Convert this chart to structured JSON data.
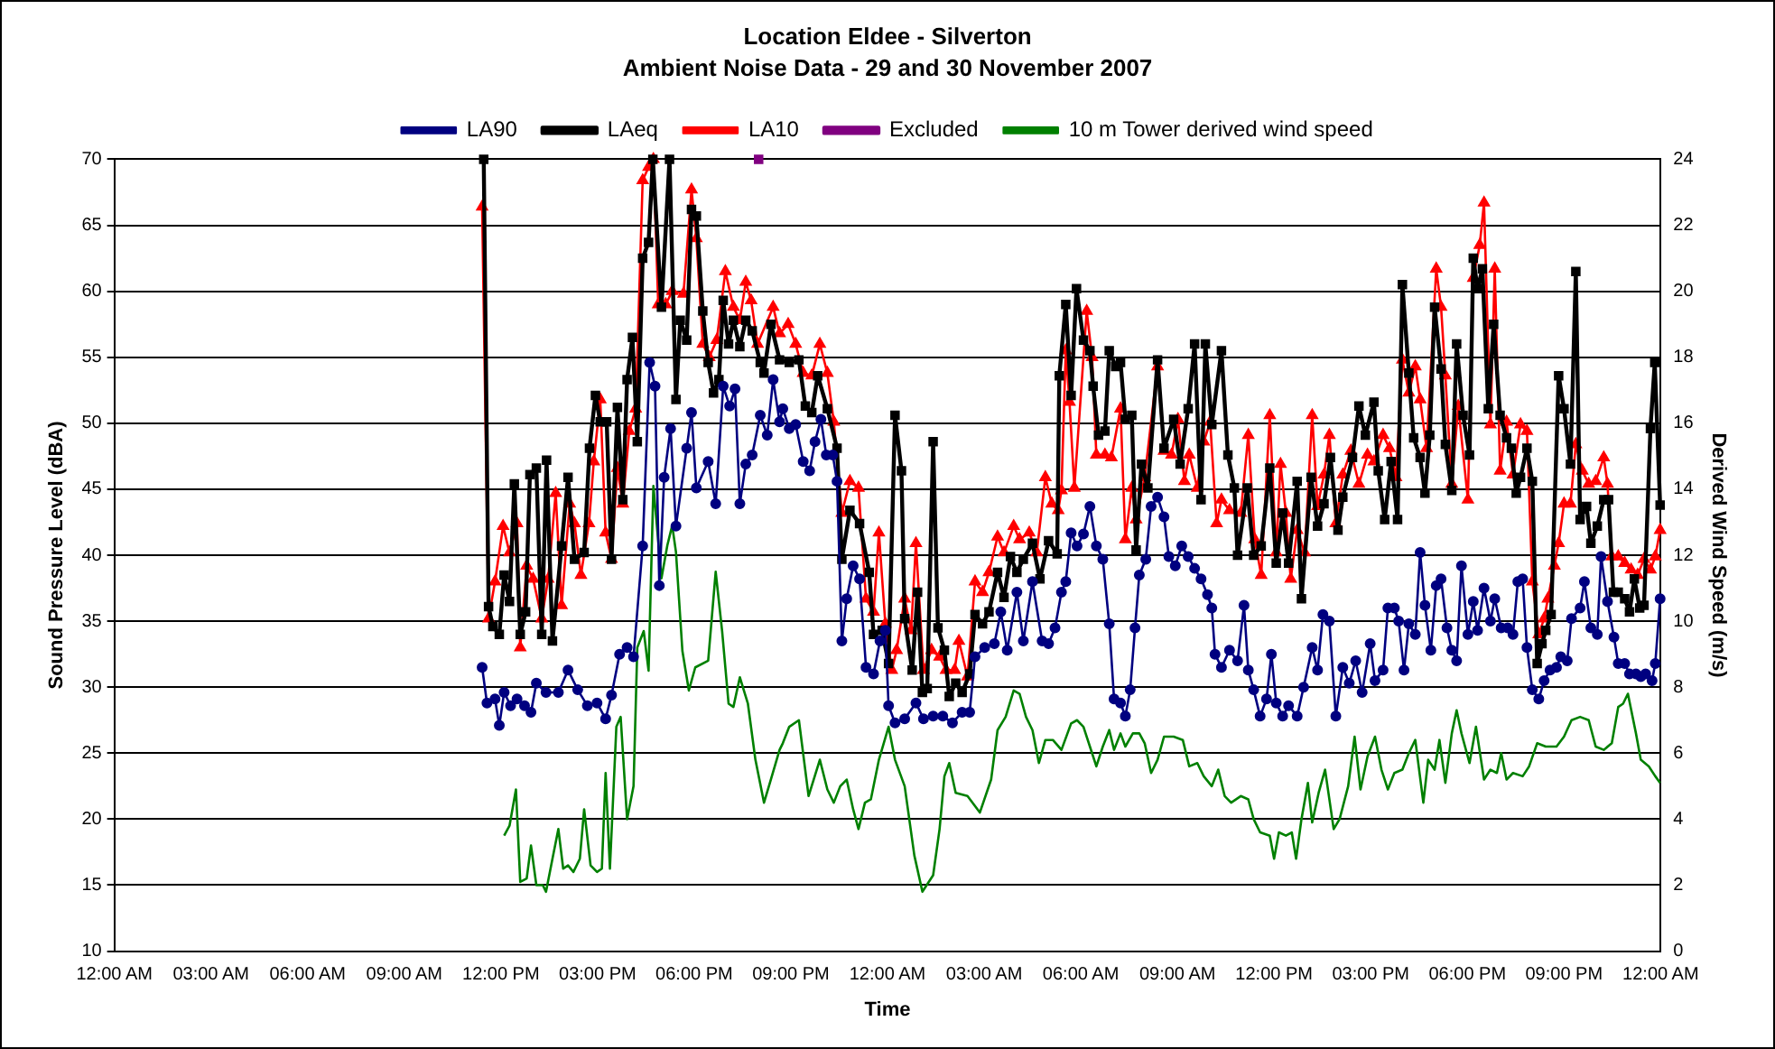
{
  "chart_data": {
    "type": "line",
    "title": "Location Eldee - Silverton",
    "subtitle": "Ambient Noise Data - 29 and 30 November 2007",
    "xlabel": "Time",
    "ylabel": "Sound Pressure Level (dBA)",
    "y2label": "Derived Wind Speed (m/s)",
    "xlim": [
      "2007-11-29T00:00",
      "2007-12-01T00:00"
    ],
    "xticks": [
      {
        "value": "2007-11-29T00:00",
        "label": "12:00 AM"
      },
      {
        "value": "2007-11-29T03:00",
        "label": "03:00 AM"
      },
      {
        "value": "2007-11-29T06:00",
        "label": "06:00 AM"
      },
      {
        "value": "2007-11-29T09:00",
        "label": "09:00 AM"
      },
      {
        "value": "2007-11-29T12:00",
        "label": "12:00 PM"
      },
      {
        "value": "2007-11-29T15:00",
        "label": "03:00 PM"
      },
      {
        "value": "2007-11-29T18:00",
        "label": "06:00 PM"
      },
      {
        "value": "2007-11-29T21:00",
        "label": "09:00 PM"
      },
      {
        "value": "2007-11-30T00:00",
        "label": "12:00 AM"
      },
      {
        "value": "2007-11-30T03:00",
        "label": "03:00 AM"
      },
      {
        "value": "2007-11-30T06:00",
        "label": "06:00 AM"
      },
      {
        "value": "2007-11-30T09:00",
        "label": "09:00 AM"
      },
      {
        "value": "2007-11-30T12:00",
        "label": "12:00 PM"
      },
      {
        "value": "2007-11-30T15:00",
        "label": "03:00 PM"
      },
      {
        "value": "2007-11-30T18:00",
        "label": "06:00 PM"
      },
      {
        "value": "2007-11-30T21:00",
        "label": "09:00 PM"
      },
      {
        "value": "2007-12-01T00:00",
        "label": "12:00 AM"
      }
    ],
    "ylim": [
      10,
      70
    ],
    "yticks": [
      10,
      15,
      20,
      25,
      30,
      35,
      40,
      45,
      50,
      55,
      60,
      65,
      70
    ],
    "y2lim": [
      0,
      24
    ],
    "y2ticks": [
      0,
      2,
      4,
      6,
      8,
      10,
      12,
      14,
      16,
      18,
      20,
      22,
      24
    ],
    "grid": "y",
    "legend": "top",
    "line_style": "solid",
    "series": [
      {
        "name": "LA90",
        "color": "#000080",
        "marker": "circle",
        "x": [
          "2007-11-29T11:25",
          "2007-11-29T11:34",
          "2007-11-29T11:49",
          "2007-11-29T11:57",
          "2007-11-29T12:06",
          "2007-11-29T12:18",
          "2007-11-29T12:30",
          "2007-11-29T12:44",
          "2007-11-29T12:56",
          "2007-11-29T13:06",
          "2007-11-29T13:24",
          "2007-11-29T13:47",
          "2007-11-29T14:05",
          "2007-11-29T14:23",
          "2007-11-29T14:41",
          "2007-11-29T14:59",
          "2007-11-29T15:15",
          "2007-11-29T15:26",
          "2007-11-29T15:41",
          "2007-11-29T15:55",
          "2007-11-29T16:07",
          "2007-11-29T16:24",
          "2007-11-29T16:37",
          "2007-11-29T16:47",
          "2007-11-29T16:55",
          "2007-11-29T17:04",
          "2007-11-29T17:16",
          "2007-11-29T17:26",
          "2007-11-29T17:46",
          "2007-11-29T17:55",
          "2007-11-29T18:04",
          "2007-11-29T18:26",
          "2007-11-29T18:40",
          "2007-11-29T18:54",
          "2007-11-29T19:06",
          "2007-11-29T19:16",
          "2007-11-29T19:25",
          "2007-11-29T19:36",
          "2007-11-29T19:48",
          "2007-11-29T20:03",
          "2007-11-29T20:16",
          "2007-11-29T20:27",
          "2007-11-29T20:39",
          "2007-11-29T20:45",
          "2007-11-29T20:57",
          "2007-11-29T21:09",
          "2007-11-29T21:23",
          "2007-11-29T21:35",
          "2007-11-29T21:45",
          "2007-11-29T21:56",
          "2007-11-29T22:06",
          "2007-11-29T22:18",
          "2007-11-29T22:26",
          "2007-11-29T22:35",
          "2007-11-29T22:44",
          "2007-11-29T22:56",
          "2007-11-29T23:08",
          "2007-11-29T23:20",
          "2007-11-29T23:34",
          "2007-11-29T23:46",
          "2007-11-29T23:56",
          "2007-11-30T00:02",
          "2007-11-30T00:14",
          "2007-11-30T00:32",
          "2007-11-30T00:53",
          "2007-11-30T01:07",
          "2007-11-30T01:25",
          "2007-11-30T01:43",
          "2007-11-30T02:01",
          "2007-11-30T02:19",
          "2007-11-30T02:33",
          "2007-11-30T02:43",
          "2007-11-30T03:01",
          "2007-11-30T03:19",
          "2007-11-30T03:31",
          "2007-11-30T03:43",
          "2007-11-30T04:01",
          "2007-11-30T04:13",
          "2007-11-30T04:30",
          "2007-11-30T04:48",
          "2007-11-30T05:00",
          "2007-11-30T05:12",
          "2007-11-30T05:24",
          "2007-11-30T05:32",
          "2007-11-30T05:42",
          "2007-11-30T05:53",
          "2007-11-30T06:05",
          "2007-11-30T06:17",
          "2007-11-30T06:29",
          "2007-11-30T06:41",
          "2007-11-30T06:53",
          "2007-11-30T07:02",
          "2007-11-30T07:14",
          "2007-11-30T07:23",
          "2007-11-30T07:32",
          "2007-11-30T07:41",
          "2007-11-30T07:49",
          "2007-11-30T08:01",
          "2007-11-30T08:11",
          "2007-11-30T08:23",
          "2007-11-30T08:35",
          "2007-11-30T08:44",
          "2007-11-30T08:56",
          "2007-11-30T09:08",
          "2007-11-30T09:20",
          "2007-11-30T09:32",
          "2007-11-30T09:44",
          "2007-11-30T09:56",
          "2007-11-30T10:04",
          "2007-11-30T10:10",
          "2007-11-30T10:22",
          "2007-11-30T10:37",
          "2007-11-30T10:52",
          "2007-11-30T11:04",
          "2007-11-30T11:12",
          "2007-11-30T11:22",
          "2007-11-30T11:34",
          "2007-11-30T11:46",
          "2007-11-30T11:55",
          "2007-11-30T12:04",
          "2007-11-30T12:16",
          "2007-11-30T12:27",
          "2007-11-30T12:43",
          "2007-11-30T12:55",
          "2007-11-30T13:11",
          "2007-11-30T13:21",
          "2007-11-30T13:31",
          "2007-11-30T13:43",
          "2007-11-30T13:55",
          "2007-11-30T14:08",
          "2007-11-30T14:20",
          "2007-11-30T14:32",
          "2007-11-30T14:44",
          "2007-11-30T14:59",
          "2007-11-30T15:08",
          "2007-11-30T15:23",
          "2007-11-30T15:32",
          "2007-11-30T15:44",
          "2007-11-30T15:52",
          "2007-11-30T16:02",
          "2007-11-30T16:11",
          "2007-11-30T16:23",
          "2007-11-30T16:32",
          "2007-11-30T16:41",
          "2007-11-30T16:52",
          "2007-11-30T17:02",
          "2007-11-30T17:11",
          "2007-11-30T17:22",
          "2007-11-30T17:31",
          "2007-11-30T17:40",
          "2007-11-30T17:49",
          "2007-11-30T18:01",
          "2007-11-30T18:11",
          "2007-11-30T18:19",
          "2007-11-30T18:31",
          "2007-11-30T18:43",
          "2007-11-30T18:51",
          "2007-11-30T19:03",
          "2007-11-30T19:15",
          "2007-11-30T19:25",
          "2007-11-30T19:34",
          "2007-11-30T19:43",
          "2007-11-30T19:51",
          "2007-11-30T20:01",
          "2007-11-30T20:13",
          "2007-11-30T20:23",
          "2007-11-30T20:34",
          "2007-11-30T20:46",
          "2007-11-30T20:54",
          "2007-11-30T21:06",
          "2007-11-30T21:14",
          "2007-11-30T21:30",
          "2007-11-30T21:38",
          "2007-11-30T21:50",
          "2007-11-30T22:02",
          "2007-11-30T22:09",
          "2007-11-30T22:21",
          "2007-11-30T22:33",
          "2007-11-30T22:41",
          "2007-11-30T22:53",
          "2007-11-30T23:02",
          "2007-11-30T23:14",
          "2007-11-30T23:23",
          "2007-11-30T23:32",
          "2007-11-30T23:44",
          "2007-11-30T23:50",
          "2007-11-30T23:59"
        ],
        "values": [
          31.5,
          28.8,
          29.1,
          27.1,
          29.6,
          28.6,
          29.1,
          28.6,
          28.1,
          30.3,
          29.6,
          29.6,
          31.3,
          29.8,
          28.6,
          28.8,
          27.6,
          29.4,
          32.5,
          33.0,
          32.3,
          40.7,
          54.6,
          52.8,
          37.7,
          45.9,
          49.6,
          42.2,
          48.1,
          50.8,
          45.1,
          47.1,
          43.9,
          52.8,
          51.3,
          52.6,
          43.9,
          46.9,
          47.6,
          50.6,
          49.1,
          53.3,
          50.1,
          51.1,
          49.6,
          49.9,
          47.1,
          46.4,
          48.6,
          50.3,
          47.6,
          47.6,
          45.6,
          33.5,
          36.7,
          39.2,
          38.2,
          31.5,
          31.0,
          33.5,
          34.3,
          28.6,
          27.3,
          27.6,
          28.8,
          27.6,
          27.8,
          27.8,
          27.3,
          28.1,
          28.1,
          32.3,
          33.0,
          33.3,
          35.7,
          32.8,
          37.2,
          33.5,
          38.0,
          33.5,
          33.3,
          34.5,
          37.2,
          38.0,
          41.7,
          40.7,
          41.6,
          43.7,
          40.7,
          39.7,
          34.8,
          29.1,
          28.8,
          27.8,
          29.8,
          34.5,
          38.5,
          39.7,
          43.7,
          44.4,
          42.9,
          39.9,
          39.2,
          40.7,
          39.9,
          39.0,
          38.2,
          37.0,
          36.0,
          32.5,
          31.5,
          32.8,
          32.0,
          36.2,
          31.3,
          29.8,
          27.8,
          29.1,
          32.5,
          28.8,
          27.8,
          28.6,
          27.8,
          30.0,
          33.0,
          31.3,
          35.5,
          35.0,
          27.8,
          31.5,
          30.3,
          32.0,
          29.6,
          33.3,
          30.5,
          31.3,
          36.0,
          36.0,
          35.0,
          31.3,
          34.8,
          34.0,
          40.2,
          36.2,
          32.8,
          37.7,
          38.2,
          34.5,
          32.8,
          32.0,
          39.2,
          34.0,
          36.5,
          34.3,
          37.5,
          35.0,
          36.7,
          34.5,
          34.5,
          34.0,
          38.0,
          38.2,
          33.0,
          29.8,
          29.1,
          30.5,
          31.3,
          31.5,
          32.3,
          32.0,
          35.2,
          36.0,
          38.0,
          34.5,
          34.0,
          39.9,
          36.5,
          33.8,
          31.8,
          31.8,
          31.0,
          31.0,
          30.8,
          31.0,
          30.5,
          31.8,
          36.7
        ]
      },
      {
        "name": "LAeq",
        "color": "#000000",
        "marker": "square",
        "x": [
          "2007-11-29T11:28",
          "2007-11-29T11:37",
          "2007-11-29T11:45",
          "2007-11-29T11:57",
          "2007-11-29T12:06",
          "2007-11-29T12:16",
          "2007-11-29T12:25",
          "2007-11-29T12:36",
          "2007-11-29T12:46",
          "2007-11-29T12:54",
          "2007-11-29T13:06",
          "2007-11-29T13:16",
          "2007-11-29T13:25",
          "2007-11-29T13:36",
          "2007-11-29T13:53",
          "2007-11-29T14:05",
          "2007-11-29T14:17",
          "2007-11-29T14:35",
          "2007-11-29T14:45",
          "2007-11-29T14:56",
          "2007-11-29T15:05",
          "2007-11-29T15:17",
          "2007-11-29T15:26",
          "2007-11-29T15:37",
          "2007-11-29T15:47",
          "2007-11-29T15:55",
          "2007-11-29T16:05",
          "2007-11-29T16:14",
          "2007-11-29T16:24",
          "2007-11-29T16:35",
          "2007-11-29T16:43",
          "2007-11-29T16:59",
          "2007-11-29T17:14",
          "2007-11-29T17:26",
          "2007-11-29T17:34",
          "2007-11-29T17:46",
          "2007-11-29T17:55",
          "2007-11-29T18:04",
          "2007-11-29T18:16",
          "2007-11-29T18:26",
          "2007-11-29T18:36",
          "2007-11-29T18:46",
          "2007-11-29T18:54",
          "2007-11-29T19:04",
          "2007-11-29T19:13",
          "2007-11-29T19:25",
          "2007-11-29T19:36",
          "2007-11-29T19:48",
          "2007-11-29T20:03",
          "2007-11-29T20:10",
          "2007-11-29T20:23",
          "2007-11-29T20:39",
          "2007-11-29T20:57",
          "2007-11-29T21:15",
          "2007-11-29T21:27",
          "2007-11-29T21:39",
          "2007-11-29T21:50",
          "2007-11-29T22:08",
          "2007-11-29T22:26",
          "2007-11-29T22:35",
          "2007-11-29T22:50",
          "2007-11-29T23:08",
          "2007-11-29T23:26",
          "2007-11-29T23:34",
          "2007-11-29T23:50",
          "2007-11-30T00:02",
          "2007-11-30T00:14",
          "2007-11-30T00:26",
          "2007-11-30T00:32",
          "2007-11-30T00:46",
          "2007-11-30T00:56",
          "2007-11-30T01:05",
          "2007-11-30T01:14",
          "2007-11-30T01:25",
          "2007-11-30T01:34",
          "2007-11-30T01:46",
          "2007-11-30T01:55",
          "2007-11-30T02:07",
          "2007-11-30T02:19",
          "2007-11-30T02:33",
          "2007-11-30T02:43",
          "2007-11-30T02:57",
          "2007-11-30T03:09",
          "2007-11-30T03:25",
          "2007-11-30T03:37",
          "2007-11-30T03:49",
          "2007-11-30T04:01",
          "2007-11-30T04:13",
          "2007-11-30T04:30",
          "2007-11-30T04:44",
          "2007-11-30T05:00",
          "2007-11-30T05:16",
          "2007-11-30T05:20",
          "2007-11-30T05:32",
          "2007-11-30T05:42",
          "2007-11-30T05:52",
          "2007-11-30T06:05",
          "2007-11-30T06:17",
          "2007-11-30T06:23",
          "2007-11-30T06:33",
          "2007-11-30T06:45",
          "2007-11-30T06:53",
          "2007-11-30T07:05",
          "2007-11-30T07:14",
          "2007-11-30T07:23",
          "2007-11-30T07:35",
          "2007-11-30T07:43",
          "2007-11-30T07:53",
          "2007-11-30T08:05",
          "2007-11-30T08:23",
          "2007-11-30T08:35",
          "2007-11-30T08:53",
          "2007-11-30T09:05",
          "2007-11-30T09:20",
          "2007-11-30T09:32",
          "2007-11-30T09:44",
          "2007-11-30T09:52",
          "2007-11-30T10:04",
          "2007-11-30T10:22",
          "2007-11-30T10:34",
          "2007-11-30T10:46",
          "2007-11-30T10:52",
          "2007-11-30T11:10",
          "2007-11-30T11:22",
          "2007-11-30T11:36",
          "2007-11-30T11:52",
          "2007-11-30T12:04",
          "2007-11-30T12:16",
          "2007-11-30T12:27",
          "2007-11-30T12:43",
          "2007-11-30T12:51",
          "2007-11-30T13:09",
          "2007-11-30T13:21",
          "2007-11-30T13:33",
          "2007-11-30T13:45",
          "2007-11-30T13:59",
          "2007-11-30T14:08",
          "2007-11-30T14:26",
          "2007-11-30T14:38",
          "2007-11-30T14:50",
          "2007-11-30T15:06",
          "2007-11-30T15:14",
          "2007-11-30T15:26",
          "2007-11-30T15:38",
          "2007-11-30T15:50",
          "2007-11-30T15:59",
          "2007-11-30T16:11",
          "2007-11-30T16:20",
          "2007-11-30T16:32",
          "2007-11-30T16:41",
          "2007-11-30T16:50",
          "2007-11-30T16:59",
          "2007-11-30T17:11",
          "2007-11-30T17:19",
          "2007-11-30T17:31",
          "2007-11-30T17:40",
          "2007-11-30T17:52",
          "2007-11-30T18:04",
          "2007-11-30T18:11",
          "2007-11-30T18:19",
          "2007-11-30T18:28",
          "2007-11-30T18:39",
          "2007-11-30T18:49",
          "2007-11-30T19:01",
          "2007-11-30T19:13",
          "2007-11-30T19:22",
          "2007-11-30T19:31",
          "2007-11-30T19:39",
          "2007-11-30T19:51",
          "2007-11-30T20:01",
          "2007-11-30T20:10",
          "2007-11-30T20:19",
          "2007-11-30T20:26",
          "2007-11-30T20:36",
          "2007-11-30T20:50",
          "2007-11-30T21:00",
          "2007-11-30T21:12",
          "2007-11-30T21:22",
          "2007-11-30T21:30",
          "2007-11-30T21:42",
          "2007-11-30T21:50",
          "2007-11-30T22:02",
          "2007-11-30T22:14",
          "2007-11-30T22:23",
          "2007-11-30T22:32",
          "2007-11-30T22:41",
          "2007-11-30T22:53",
          "2007-11-30T23:02",
          "2007-11-30T23:11",
          "2007-11-30T23:21",
          "2007-11-30T23:29",
          "2007-11-30T23:41",
          "2007-11-30T23:49",
          "2007-11-30T23:59"
        ],
        "values": [
          70,
          36.1,
          34.6,
          34.0,
          38.5,
          36.5,
          45.4,
          34.0,
          35.7,
          46.1,
          46.6,
          34.0,
          47.2,
          33.5,
          40.7,
          45.9,
          39.7,
          40.2,
          48.1,
          52.1,
          50.1,
          50.1,
          39.7,
          51.2,
          44.2,
          53.3,
          56.5,
          48.6,
          62.5,
          63.7,
          70,
          58.8,
          70,
          51.8,
          57.8,
          56.3,
          66.2,
          65.7,
          58.5,
          54.6,
          52.3,
          53.3,
          59.3,
          56.0,
          57.8,
          55.8,
          57.8,
          57.0,
          54.6,
          53.8,
          57.5,
          54.8,
          54.6,
          54.8,
          51.3,
          50.8,
          53.6,
          51.1,
          48.1,
          39.7,
          43.4,
          42.4,
          38.7,
          34.0,
          34.3,
          31.8,
          50.6,
          46.4,
          35.2,
          31.3,
          37.2,
          29.6,
          29.9,
          48.6,
          34.5,
          32.8,
          29.3,
          30.3,
          29.6,
          31.0,
          35.5,
          34.8,
          35.7,
          38.7,
          36.8,
          39.9,
          38.7,
          39.7,
          40.9,
          38.2,
          41.1,
          40.1,
          53.6,
          59.0,
          52.1,
          60.2,
          56.3,
          55.5,
          52.8,
          49.1,
          49.4,
          55.5,
          54.3,
          54.6,
          50.3,
          50.6,
          40.4,
          46.9,
          45.1,
          54.8,
          48.1,
          50.3,
          46.9,
          51.1,
          56.0,
          44.2,
          56.0,
          49.9,
          55.5,
          47.6,
          45.1,
          40.0,
          45.1,
          40.0,
          40.7,
          46.6,
          39.4,
          43.2,
          39.4,
          45.6,
          36.7,
          45.9,
          42.2,
          43.9,
          47.4,
          41.9,
          44.4,
          47.4,
          51.3,
          49.1,
          51.6,
          46.4,
          42.7,
          47.1,
          42.7,
          60.5,
          53.8,
          48.9,
          47.4,
          44.7,
          49.1,
          58.8,
          54.1,
          48.4,
          44.9,
          56.0,
          50.6,
          47.6,
          62.5,
          60.2,
          61.7,
          51.1,
          57.5,
          50.6,
          48.9,
          48.1,
          44.7,
          45.9,
          48.1,
          45.6,
          31.8,
          33.3,
          34.3,
          35.5,
          53.6,
          51.1,
          46.9,
          61.5,
          42.7,
          43.7,
          40.9,
          42.2,
          44.2,
          44.2,
          37.2,
          37.2,
          36.7,
          35.7,
          38.2,
          36.0,
          36.2,
          49.6,
          54.6,
          43.8
        ]
      },
      {
        "name": "LA10",
        "color": "#ff0000",
        "marker": "triangle",
        "x": [
          "2007-11-29T11:25",
          "2007-11-29T11:37",
          "2007-11-29T11:49",
          "2007-11-29T12:04",
          "2007-11-29T12:16",
          "2007-11-29T12:30",
          "2007-11-29T12:36",
          "2007-11-29T12:48",
          "2007-11-29T13:00",
          "2007-11-29T13:16",
          "2007-11-29T13:28",
          "2007-11-29T13:42",
          "2007-11-29T13:53",
          "2007-11-29T14:08",
          "2007-11-29T14:17",
          "2007-11-29T14:29",
          "2007-11-29T14:44",
          "2007-11-29T14:53",
          "2007-11-29T15:05",
          "2007-11-29T15:15",
          "2007-11-29T15:26",
          "2007-11-29T15:37",
          "2007-11-29T15:47",
          "2007-11-29T15:59",
          "2007-11-29T16:11",
          "2007-11-29T16:24",
          "2007-11-29T16:35",
          "2007-11-29T16:44",
          "2007-11-29T16:53",
          "2007-11-29T17:07",
          "2007-11-29T17:19",
          "2007-11-29T17:40",
          "2007-11-29T17:55",
          "2007-11-29T18:04",
          "2007-11-29T18:16",
          "2007-11-29T18:28",
          "2007-11-29T18:42",
          "2007-11-29T18:58",
          "2007-11-29T19:13",
          "2007-11-29T19:25",
          "2007-11-29T19:36",
          "2007-11-29T19:46",
          "2007-11-29T19:58",
          "2007-11-29T20:27",
          "2007-11-29T20:39",
          "2007-11-29T20:55",
          "2007-11-29T21:09",
          "2007-11-29T21:23",
          "2007-11-29T21:39",
          "2007-11-29T21:54",
          "2007-11-29T22:08",
          "2007-11-29T22:20",
          "2007-11-29T22:35",
          "2007-11-29T22:50",
          "2007-11-29T23:06",
          "2007-11-29T23:20",
          "2007-11-29T23:34",
          "2007-11-29T23:44",
          "2007-11-29T23:56",
          "2007-11-30T00:08",
          "2007-11-30T00:17",
          "2007-11-30T00:32",
          "2007-11-30T00:44",
          "2007-11-30T00:53",
          "2007-11-30T01:07",
          "2007-11-30T01:22",
          "2007-11-30T01:37",
          "2007-11-30T01:49",
          "2007-11-30T02:05",
          "2007-11-30T02:13",
          "2007-11-30T02:29",
          "2007-11-30T02:43",
          "2007-11-30T02:57",
          "2007-11-30T03:09",
          "2007-11-30T03:25",
          "2007-11-30T03:37",
          "2007-11-30T03:55",
          "2007-11-30T04:06",
          "2007-11-30T04:24",
          "2007-11-30T04:38",
          "2007-11-30T04:54",
          "2007-11-30T05:06",
          "2007-11-30T05:18",
          "2007-11-30T05:24",
          "2007-11-30T05:32",
          "2007-11-30T05:39",
          "2007-11-30T05:48",
          "2007-11-30T06:11",
          "2007-11-30T06:21",
          "2007-11-30T06:29",
          "2007-11-30T06:45",
          "2007-11-30T06:57",
          "2007-11-30T07:14",
          "2007-11-30T07:23",
          "2007-11-30T07:35",
          "2007-11-30T07:43",
          "2007-11-30T07:59",
          "2007-11-30T08:23",
          "2007-11-30T08:35",
          "2007-11-30T08:49",
          "2007-11-30T09:01",
          "2007-11-30T09:13",
          "2007-11-30T09:22",
          "2007-11-30T09:37",
          "2007-11-30T09:49",
          "2007-11-30T10:01",
          "2007-11-30T10:13",
          "2007-11-30T10:22",
          "2007-11-30T10:37",
          "2007-11-30T10:58",
          "2007-11-30T11:12",
          "2007-11-30T11:24",
          "2007-11-30T11:36",
          "2007-11-30T11:52",
          "2007-11-30T12:04",
          "2007-11-30T12:12",
          "2007-11-30T12:22",
          "2007-11-30T12:31",
          "2007-11-30T12:43",
          "2007-11-30T12:57",
          "2007-11-30T13:11",
          "2007-11-30T13:21",
          "2007-11-30T13:33",
          "2007-11-30T13:43",
          "2007-11-30T13:55",
          "2007-11-30T14:08",
          "2007-11-30T14:23",
          "2007-11-30T14:38",
          "2007-11-30T14:54",
          "2007-11-30T15:06",
          "2007-11-30T15:23",
          "2007-11-30T15:35",
          "2007-11-30T15:47",
          "2007-11-30T15:59",
          "2007-11-30T16:11",
          "2007-11-30T16:23",
          "2007-11-30T16:32",
          "2007-11-30T16:44",
          "2007-11-30T17:02",
          "2007-11-30T17:11",
          "2007-11-30T17:19",
          "2007-11-30T17:31",
          "2007-11-30T17:43",
          "2007-11-30T18:01",
          "2007-11-30T18:11",
          "2007-11-30T18:23",
          "2007-11-30T18:31",
          "2007-11-30T18:43",
          "2007-11-30T18:51",
          "2007-11-30T19:01",
          "2007-11-30T19:13",
          "2007-11-30T19:25",
          "2007-11-30T19:39",
          "2007-11-30T19:51",
          "2007-11-30T20:01",
          "2007-11-30T20:13",
          "2007-11-30T20:23",
          "2007-11-30T20:30",
          "2007-11-30T20:42",
          "2007-11-30T20:50",
          "2007-11-30T21:00",
          "2007-11-30T21:12",
          "2007-11-30T21:22",
          "2007-11-30T21:34",
          "2007-11-30T21:46",
          "2007-11-30T21:59",
          "2007-11-30T22:14",
          "2007-11-30T22:21",
          "2007-11-30T22:29",
          "2007-11-30T22:41",
          "2007-11-30T22:53",
          "2007-11-30T23:05",
          "2007-11-30T23:17",
          "2007-11-30T23:29",
          "2007-11-30T23:41",
          "2007-11-30T23:50",
          "2007-11-30T23:59"
        ],
        "values": [
          66.4,
          35.2,
          38.0,
          42.2,
          40.2,
          42.4,
          33.0,
          39.2,
          38.2,
          35.2,
          38.2,
          44.7,
          36.2,
          43.9,
          42.4,
          38.5,
          42.4,
          47.1,
          51.8,
          41.7,
          39.7,
          46.6,
          43.9,
          49.4,
          51.1,
          68.4,
          69.4,
          70,
          59.0,
          59.0,
          60.0,
          59.8,
          67.7,
          64.0,
          56.0,
          55.0,
          56.3,
          61.5,
          58.8,
          57.8,
          60.7,
          59.3,
          56.0,
          58.8,
          56.8,
          57.5,
          56.0,
          53.8,
          53.6,
          56.0,
          53.8,
          50.1,
          43.2,
          45.6,
          45.1,
          36.7,
          35.7,
          41.7,
          34.8,
          31.3,
          32.8,
          36.7,
          34.3,
          40.9,
          31.3,
          32.8,
          32.3,
          31.3,
          31.3,
          33.5,
          30.8,
          38.0,
          37.2,
          38.7,
          41.4,
          40.2,
          42.2,
          41.2,
          41.7,
          40.2,
          45.9,
          43.9,
          43.4,
          44.9,
          55.5,
          51.6,
          45.1,
          58.5,
          55.0,
          47.6,
          47.6,
          47.4,
          51.1,
          41.2,
          45.1,
          42.7,
          45.9,
          54.3,
          47.9,
          47.6,
          50.3,
          45.6,
          47.6,
          45.1,
          48.6,
          50.1,
          42.4,
          44.2,
          43.4,
          43.2,
          49.1,
          41.2,
          38.5,
          50.6,
          40.2,
          46.9,
          43.2,
          38.2,
          41.9,
          40.2,
          50.6,
          43.7,
          46.1,
          49.1,
          42.4,
          46.1,
          47.9,
          45.4,
          47.6,
          47.1,
          49.1,
          48.1,
          45.9,
          54.8,
          52.3,
          54.3,
          51.8,
          48.1,
          61.7,
          58.8,
          53.6,
          45.4,
          51.3,
          44.2,
          61.0,
          63.5,
          66.7,
          49.9,
          61.7,
          46.4,
          50.1,
          46.1,
          49.9,
          49.4,
          38.0,
          34.0,
          35.2,
          36.7,
          39.2,
          40.9,
          43.9,
          43.9,
          48.4,
          46.4,
          45.4,
          45.6,
          47.4,
          45.4,
          39.9,
          39.9,
          39.4,
          38.9,
          38.5,
          39.7,
          38.9,
          39.9,
          41.9
        ]
      },
      {
        "name": "Excluded",
        "type": "scatter",
        "color": "#800080",
        "marker": "square",
        "x": [
          "2007-11-29T20:00"
        ],
        "values": [
          70
        ]
      },
      {
        "name": "10 m Tower derived wind speed",
        "color": "#008000",
        "marker": "none",
        "axis": "y2",
        "x": [
          "2007-11-29T12:06",
          "2007-11-29T12:16",
          "2007-11-29T12:28",
          "2007-11-29T12:36",
          "2007-11-29T12:48",
          "2007-11-29T12:56",
          "2007-11-29T13:06",
          "2007-11-29T13:18",
          "2007-11-29T13:24",
          "2007-11-29T13:36",
          "2007-11-29T13:47",
          "2007-11-29T13:56",
          "2007-11-29T14:05",
          "2007-11-29T14:15",
          "2007-11-29T14:27",
          "2007-11-29T14:35",
          "2007-11-29T14:47",
          "2007-11-29T14:59",
          "2007-11-29T15:08",
          "2007-11-29T15:15",
          "2007-11-29T15:23",
          "2007-11-29T15:35",
          "2007-11-29T15:43",
          "2007-11-29T15:55",
          "2007-11-29T16:07",
          "2007-11-29T16:14",
          "2007-11-29T16:26",
          "2007-11-29T16:35",
          "2007-11-29T16:44",
          "2007-11-29T16:59",
          "2007-11-29T17:10",
          "2007-11-29T17:19",
          "2007-11-29T17:26",
          "2007-11-29T17:38",
          "2007-11-29T17:50",
          "2007-11-29T18:02",
          "2007-11-29T18:26",
          "2007-11-29T18:40",
          "2007-11-29T18:52",
          "2007-11-29T19:04",
          "2007-11-29T19:13",
          "2007-11-29T19:25",
          "2007-11-29T19:40",
          "2007-11-29T19:54",
          "2007-11-29T20:10",
          "2007-11-29T20:21",
          "2007-11-29T20:39",
          "2007-11-29T20:45",
          "2007-11-29T20:57",
          "2007-11-29T21:15",
          "2007-11-29T21:33",
          "2007-11-29T21:54",
          "2007-11-29T22:08",
          "2007-11-29T22:20",
          "2007-11-29T22:32",
          "2007-11-29T22:44",
          "2007-11-29T22:56",
          "2007-11-29T23:06",
          "2007-11-29T23:18",
          "2007-11-29T23:29",
          "2007-11-29T23:44",
          "2007-11-30T00:02",
          "2007-11-30T00:14",
          "2007-11-30T00:32",
          "2007-11-30T00:50",
          "2007-11-30T01:05",
          "2007-11-30T01:25",
          "2007-11-30T01:37",
          "2007-11-30T01:46",
          "2007-11-30T01:55",
          "2007-11-30T02:07",
          "2007-11-30T02:29",
          "2007-11-30T02:52",
          "2007-11-30T03:13",
          "2007-11-30T03:25",
          "2007-11-30T03:40",
          "2007-11-30T03:55",
          "2007-11-30T04:06",
          "2007-11-30T04:18",
          "2007-11-30T04:30",
          "2007-11-30T04:42",
          "2007-11-30T04:54",
          "2007-11-30T05:08",
          "2007-11-30T05:24",
          "2007-11-30T05:42",
          "2007-11-30T05:53",
          "2007-11-30T06:05",
          "2007-11-30T06:17",
          "2007-11-30T06:29",
          "2007-11-30T06:41",
          "2007-11-30T06:53",
          "2007-11-30T07:02",
          "2007-11-30T07:14",
          "2007-11-30T07:23",
          "2007-11-30T07:37",
          "2007-11-30T07:49",
          "2007-11-30T07:59",
          "2007-11-30T08:11",
          "2007-11-30T08:23",
          "2007-11-30T08:35",
          "2007-11-30T08:53",
          "2007-11-30T09:10",
          "2007-11-30T09:22",
          "2007-11-30T09:37",
          "2007-11-30T09:49",
          "2007-11-30T10:04",
          "2007-11-30T10:16",
          "2007-11-30T10:28",
          "2007-11-30T10:40",
          "2007-11-30T10:58",
          "2007-11-30T11:12",
          "2007-11-30T11:22",
          "2007-11-30T11:34",
          "2007-11-30T11:52",
          "2007-11-30T12:00",
          "2007-11-30T12:09",
          "2007-11-30T12:22",
          "2007-11-30T12:33",
          "2007-11-30T12:41",
          "2007-11-30T12:51",
          "2007-11-30T13:03",
          "2007-11-30T13:11",
          "2007-11-30T13:23",
          "2007-11-30T13:35",
          "2007-11-30T13:51",
          "2007-11-30T14:02",
          "2007-11-30T14:18",
          "2007-11-30T14:30",
          "2007-11-30T14:41",
          "2007-11-30T14:54",
          "2007-11-30T15:08",
          "2007-11-30T15:20",
          "2007-11-30T15:32",
          "2007-11-30T15:44",
          "2007-11-30T15:59",
          "2007-11-30T16:11",
          "2007-11-30T16:23",
          "2007-11-30T16:38",
          "2007-11-30T16:47",
          "2007-11-30T16:59",
          "2007-11-30T17:08",
          "2007-11-30T17:19",
          "2007-11-30T17:31",
          "2007-11-30T17:40",
          "2007-11-30T17:49",
          "2007-11-30T18:04",
          "2007-11-30T18:16",
          "2007-11-30T18:31",
          "2007-11-30T18:43",
          "2007-11-30T18:55",
          "2007-11-30T19:03",
          "2007-11-30T19:13",
          "2007-11-30T19:25",
          "2007-11-30T19:43",
          "2007-11-30T19:55",
          "2007-11-30T20:10",
          "2007-11-30T20:26",
          "2007-11-30T20:46",
          "2007-11-30T21:00",
          "2007-11-30T21:14",
          "2007-11-30T21:30",
          "2007-11-30T21:46",
          "2007-11-30T21:59",
          "2007-11-30T22:14",
          "2007-11-30T22:29",
          "2007-11-30T22:41",
          "2007-11-30T22:50",
          "2007-11-30T22:59",
          "2007-11-30T23:14",
          "2007-11-30T23:23",
          "2007-11-30T23:38",
          "2007-11-30T23:50",
          "2007-11-30T23:59"
        ],
        "values": [
          3.5,
          3.8,
          4.9,
          2.1,
          2.2,
          3.2,
          2.0,
          2.0,
          1.8,
          2.8,
          3.7,
          2.5,
          2.6,
          2.4,
          2.8,
          4.3,
          2.6,
          2.4,
          2.5,
          5.4,
          2.5,
          6.8,
          7.1,
          4.0,
          5.0,
          9.2,
          9.7,
          8.5,
          14.1,
          11.3,
          12.3,
          12.9,
          12.1,
          9.1,
          7.9,
          8.6,
          8.8,
          11.5,
          9.7,
          7.5,
          7.4,
          8.3,
          7.5,
          5.8,
          4.5,
          5.1,
          6.1,
          6.3,
          6.8,
          7.0,
          4.7,
          5.8,
          4.9,
          4.5,
          5.0,
          5.2,
          4.3,
          3.7,
          4.5,
          4.6,
          5.8,
          6.8,
          5.8,
          5.0,
          2.9,
          1.8,
          2.3,
          3.7,
          5.3,
          5.7,
          4.8,
          4.7,
          4.2,
          5.2,
          6.7,
          7.1,
          7.9,
          7.8,
          7.1,
          6.7,
          5.7,
          6.4,
          6.4,
          6.1,
          6.9,
          7.0,
          6.8,
          6.2,
          5.6,
          6.2,
          6.7,
          6.1,
          6.6,
          6.2,
          6.6,
          6.6,
          6.3,
          5.4,
          5.8,
          6.5,
          6.5,
          6.4,
          5.6,
          5.7,
          5.3,
          5.0,
          5.5,
          4.7,
          4.5,
          4.7,
          4.6,
          4.0,
          3.6,
          3.5,
          2.8,
          3.6,
          3.5,
          3.6,
          2.8,
          4.0,
          5.1,
          3.9,
          4.8,
          5.5,
          3.7,
          4.0,
          5.0,
          6.5,
          4.9,
          5.9,
          6.5,
          5.5,
          4.9,
          5.4,
          5.5,
          6.0,
          6.4,
          4.5,
          5.8,
          5.5,
          6.4,
          5.1,
          6.6,
          7.3,
          6.6,
          5.7,
          6.8,
          5.2,
          5.5,
          5.4,
          6.0,
          5.2,
          5.4,
          5.3,
          5.6,
          6.3,
          6.2,
          6.2,
          6.5,
          7.0,
          7.1,
          7.0,
          6.2,
          6.1,
          6.3,
          7.4,
          7.5,
          7.8,
          6.6,
          5.8,
          5.6,
          5.3,
          5.1
        ]
      }
    ]
  }
}
